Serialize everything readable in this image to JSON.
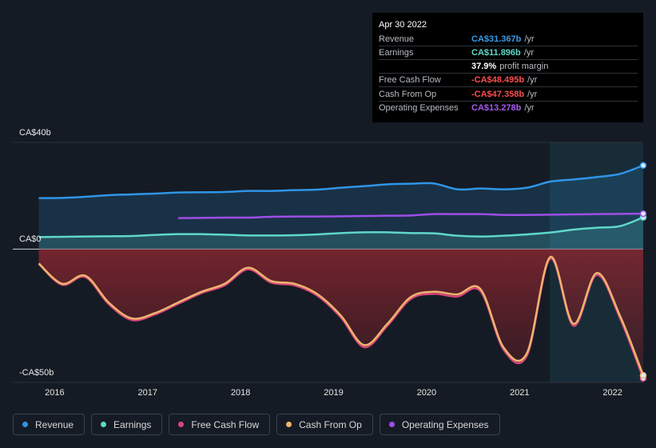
{
  "chart_data": {
    "type": "line",
    "x": [
      2015.83,
      2016.08,
      2016.33,
      2016.58,
      2016.83,
      2017.08,
      2017.33,
      2017.58,
      2017.83,
      2018.08,
      2018.33,
      2018.58,
      2018.83,
      2019.08,
      2019.33,
      2019.58,
      2019.83,
      2020.08,
      2020.33,
      2020.58,
      2020.83,
      2021.08,
      2021.33,
      2021.58,
      2021.83,
      2022.08,
      2022.33
    ],
    "xlim": [
      2015.55,
      2022.33
    ],
    "xticks": [
      2016,
      2017,
      2018,
      2019,
      2020,
      2021,
      2022
    ],
    "ylim": [
      -50,
      40
    ],
    "yticks": [
      {
        "value": 40,
        "label": "CA$40b"
      },
      {
        "value": 0,
        "label": "CA$0"
      },
      {
        "value": -50,
        "label": "-CA$50b"
      }
    ],
    "legend": "bottom-left",
    "series": [
      {
        "name": "Revenue",
        "color": "#2f95e6",
        "fill": true,
        "values": [
          19.1,
          19.2,
          19.6,
          20.2,
          20.5,
          20.8,
          21.2,
          21.3,
          21.4,
          21.8,
          21.8,
          22.1,
          22.3,
          23.0,
          23.6,
          24.3,
          24.5,
          24.6,
          22.4,
          22.7,
          22.4,
          23.0,
          25.3,
          26.1,
          27.0,
          28.2,
          31.367
        ]
      },
      {
        "name": "Earnings",
        "color": "#5fd8c8",
        "fill": true,
        "values": [
          4.5,
          4.6,
          4.7,
          4.8,
          4.9,
          5.3,
          5.6,
          5.6,
          5.4,
          5.1,
          5.1,
          5.2,
          5.5,
          6.0,
          6.3,
          6.3,
          6.0,
          5.9,
          5.0,
          4.7,
          5.0,
          5.5,
          6.2,
          7.3,
          8.0,
          8.6,
          11.896
        ]
      },
      {
        "name": "Free Cash Flow",
        "color": "#d9457a",
        "fill": false,
        "values": [
          -5.6,
          -13.4,
          -10.5,
          -20.6,
          -26.6,
          -24.5,
          -20.5,
          -16.5,
          -13.6,
          -7.6,
          -12.6,
          -13.6,
          -17.6,
          -25.7,
          -36.8,
          -28.7,
          -18.7,
          -16.8,
          -17.8,
          -15.8,
          -37.8,
          -39.9,
          -3.6,
          -28.8,
          -9.7,
          -25.9,
          -48.495
        ]
      },
      {
        "name": "Cash From Op",
        "color": "#eeb46e",
        "fill": true,
        "values": [
          -5.4,
          -13,
          -10,
          -20,
          -26,
          -24,
          -20,
          -16,
          -13,
          -7,
          -12,
          -13,
          -17,
          -25,
          -36,
          -28,
          -18,
          -16,
          -17,
          -15,
          -37,
          -39,
          -3,
          -28,
          -9,
          -25,
          -47.358
        ]
      },
      {
        "name": "Operating Expenses",
        "color": "#9d4ee6",
        "fill": false,
        "values": [
          null,
          null,
          null,
          null,
          null,
          null,
          11.6,
          11.7,
          11.8,
          11.8,
          12.1,
          12.2,
          12.2,
          12.3,
          12.4,
          12.5,
          12.6,
          13.1,
          13.1,
          13.1,
          12.8,
          12.8,
          12.9,
          13.0,
          13.1,
          13.2,
          13.278
        ]
      }
    ],
    "tooltip": {
      "date": "Apr 30 2022",
      "rows": [
        {
          "label": "Revenue",
          "value": "CA$31.367b",
          "unit": "/yr",
          "color": "#3a9ce8"
        },
        {
          "label": "Earnings",
          "value": "CA$11.896b",
          "unit": "/yr",
          "color": "#5fd8c8"
        },
        {
          "label": "",
          "value": "37.9%",
          "unit": "profit margin",
          "color": "#ffffff"
        },
        {
          "label": "Free Cash Flow",
          "value": "-CA$48.495b",
          "unit": "/yr",
          "color": "#ff4d4d"
        },
        {
          "label": "Cash From Op",
          "value": "-CA$47.358b",
          "unit": "/yr",
          "color": "#ff4d4d"
        },
        {
          "label": "Operating Expenses",
          "value": "CA$13.278b",
          "unit": "/yr",
          "color": "#a55cf0"
        }
      ]
    }
  }
}
